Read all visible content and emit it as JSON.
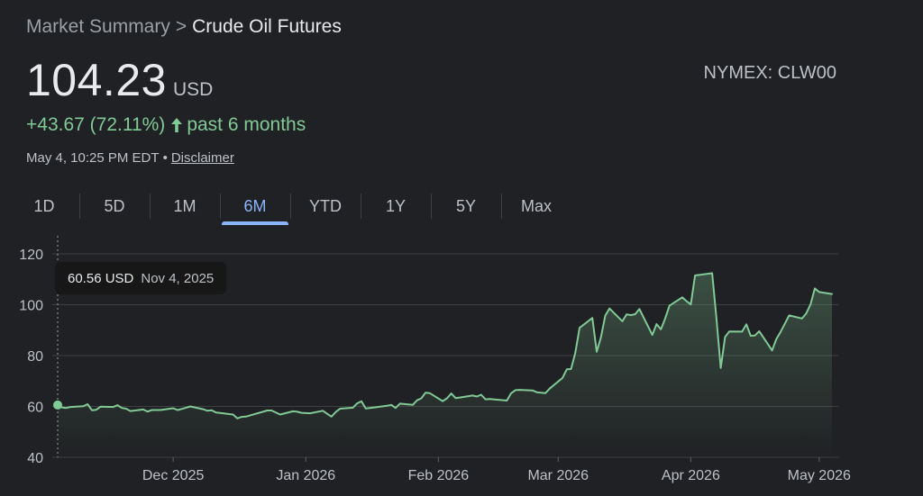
{
  "breadcrumb": {
    "parent": "Market Summary",
    "separator": ">",
    "current": "Crude Oil Futures"
  },
  "quote": {
    "price": "104.23",
    "currency": "USD",
    "exchange": "NYMEX: CLW00",
    "change": "+43.67 (72.11%)",
    "period": "past 6 months",
    "timestamp": "May 4, 10:25 PM EDT",
    "disclaimer": "Disclaimer"
  },
  "tabs": [
    {
      "label": "1D",
      "active": false
    },
    {
      "label": "5D",
      "active": false
    },
    {
      "label": "1M",
      "active": false
    },
    {
      "label": "6M",
      "active": true
    },
    {
      "label": "YTD",
      "active": false
    },
    {
      "label": "1Y",
      "active": false
    },
    {
      "label": "5Y",
      "active": false
    },
    {
      "label": "Max",
      "active": false
    }
  ],
  "tooltip": {
    "price": "60.56 USD",
    "date": "Nov 4, 2025"
  },
  "colors": {
    "line": "#81c995",
    "accent": "#8ab4f8",
    "background": "#202124",
    "grid": "#3c4043"
  },
  "chart_data": {
    "type": "area",
    "title": "",
    "xlabel": "",
    "ylabel": "",
    "ylim": [
      40,
      120
    ],
    "yticks": [
      40,
      60,
      80,
      100,
      120
    ],
    "xlim": [
      "2025-11-04",
      "2026-05-04"
    ],
    "xticks": [
      {
        "date": "2025-12-01",
        "label": "Dec 2025"
      },
      {
        "date": "2026-01-01",
        "label": "Jan 2026"
      },
      {
        "date": "2026-02-01",
        "label": "Feb 2026"
      },
      {
        "date": "2026-03-01",
        "label": "Mar 2026"
      },
      {
        "date": "2026-04-01",
        "label": "Apr 2026"
      },
      {
        "date": "2026-05-01",
        "label": "May 2026"
      }
    ],
    "grid": true,
    "highlight": {
      "date": "2025-11-04",
      "value": 60.56
    },
    "series": [
      {
        "points": [
          [
            "2025-11-04",
            60.56
          ],
          [
            "2025-11-05",
            59.6
          ],
          [
            "2025-11-06",
            59.4
          ],
          [
            "2025-11-07",
            59.8
          ],
          [
            "2025-11-10",
            60.1
          ],
          [
            "2025-11-11",
            60.9
          ],
          [
            "2025-11-12",
            58.5
          ],
          [
            "2025-11-13",
            58.7
          ],
          [
            "2025-11-14",
            59.9
          ],
          [
            "2025-11-17",
            59.8
          ],
          [
            "2025-11-18",
            60.5
          ],
          [
            "2025-11-19",
            59.4
          ],
          [
            "2025-11-20",
            59.1
          ],
          [
            "2025-11-21",
            58.2
          ],
          [
            "2025-11-24",
            58.8
          ],
          [
            "2025-11-25",
            58.0
          ],
          [
            "2025-11-26",
            58.6
          ],
          [
            "2025-11-28",
            58.6
          ],
          [
            "2025-12-01",
            59.3
          ],
          [
            "2025-12-02",
            58.6
          ],
          [
            "2025-12-03",
            59.0
          ],
          [
            "2025-12-04",
            59.5
          ],
          [
            "2025-12-05",
            60.0
          ],
          [
            "2025-12-08",
            58.9
          ],
          [
            "2025-12-09",
            58.3
          ],
          [
            "2025-12-10",
            58.5
          ],
          [
            "2025-12-11",
            57.6
          ],
          [
            "2025-12-12",
            57.4
          ],
          [
            "2025-12-15",
            56.8
          ],
          [
            "2025-12-16",
            55.3
          ],
          [
            "2025-12-17",
            55.9
          ],
          [
            "2025-12-18",
            56.0
          ],
          [
            "2025-12-19",
            56.5
          ],
          [
            "2025-12-22",
            57.9
          ],
          [
            "2025-12-23",
            58.4
          ],
          [
            "2025-12-24",
            58.4
          ],
          [
            "2025-12-26",
            56.8
          ],
          [
            "2025-12-29",
            58.1
          ],
          [
            "2025-12-30",
            57.9
          ],
          [
            "2025-12-31",
            57.5
          ],
          [
            "2026-01-02",
            57.3
          ],
          [
            "2026-01-05",
            58.3
          ],
          [
            "2026-01-06",
            57.1
          ],
          [
            "2026-01-07",
            56.0
          ],
          [
            "2026-01-08",
            57.8
          ],
          [
            "2026-01-09",
            59.1
          ],
          [
            "2026-01-12",
            59.5
          ],
          [
            "2026-01-13",
            61.2
          ],
          [
            "2026-01-14",
            62.0
          ],
          [
            "2026-01-15",
            59.2
          ],
          [
            "2026-01-16",
            59.4
          ],
          [
            "2026-01-20",
            60.3
          ],
          [
            "2026-01-21",
            60.6
          ],
          [
            "2026-01-22",
            59.4
          ],
          [
            "2026-01-23",
            61.1
          ],
          [
            "2026-01-26",
            60.6
          ],
          [
            "2026-01-27",
            62.4
          ],
          [
            "2026-01-28",
            63.2
          ],
          [
            "2026-01-29",
            65.4
          ],
          [
            "2026-01-30",
            65.2
          ],
          [
            "2026-02-02",
            62.1
          ],
          [
            "2026-02-03",
            63.2
          ],
          [
            "2026-02-04",
            65.1
          ],
          [
            "2026-02-05",
            63.3
          ],
          [
            "2026-02-06",
            63.5
          ],
          [
            "2026-02-09",
            64.3
          ],
          [
            "2026-02-10",
            63.9
          ],
          [
            "2026-02-11",
            64.6
          ],
          [
            "2026-02-12",
            62.8
          ],
          [
            "2026-02-13",
            62.9
          ],
          [
            "2026-02-17",
            62.3
          ],
          [
            "2026-02-18",
            65.2
          ],
          [
            "2026-02-19",
            66.4
          ],
          [
            "2026-02-20",
            66.5
          ],
          [
            "2026-02-23",
            66.3
          ],
          [
            "2026-02-24",
            65.6
          ],
          [
            "2026-02-25",
            65.4
          ],
          [
            "2026-02-26",
            65.2
          ],
          [
            "2026-02-27",
            67.0
          ],
          [
            "2026-03-02",
            71.2
          ],
          [
            "2026-03-03",
            74.6
          ],
          [
            "2026-03-04",
            74.7
          ],
          [
            "2026-03-05",
            81.0
          ],
          [
            "2026-03-06",
            90.9
          ],
          [
            "2026-03-09",
            94.8
          ],
          [
            "2026-03-10",
            81.5
          ],
          [
            "2026-03-11",
            87.2
          ],
          [
            "2026-03-12",
            95.7
          ],
          [
            "2026-03-13",
            98.5
          ],
          [
            "2026-03-16",
            93.5
          ],
          [
            "2026-03-17",
            96.2
          ],
          [
            "2026-03-18",
            95.9
          ],
          [
            "2026-03-19",
            96.3
          ],
          [
            "2026-03-20",
            98.3
          ],
          [
            "2026-03-23",
            88.1
          ],
          [
            "2026-03-24",
            92.4
          ],
          [
            "2026-03-25",
            90.3
          ],
          [
            "2026-03-26",
            94.5
          ],
          [
            "2026-03-27",
            99.6
          ],
          [
            "2026-03-30",
            102.9
          ],
          [
            "2026-03-31",
            101.4
          ],
          [
            "2026-04-01",
            100.1
          ],
          [
            "2026-04-02",
            111.5
          ],
          [
            "2026-04-06",
            112.4
          ],
          [
            "2026-04-07",
            94.4
          ],
          [
            "2026-04-08",
            75.1
          ],
          [
            "2026-04-09",
            87.3
          ],
          [
            "2026-04-10",
            89.5
          ],
          [
            "2026-04-13",
            89.4
          ],
          [
            "2026-04-14",
            92.3
          ],
          [
            "2026-04-15",
            87.8
          ],
          [
            "2026-04-16",
            87.9
          ],
          [
            "2026-04-17",
            89.6
          ],
          [
            "2026-04-20",
            82.0
          ],
          [
            "2026-04-21",
            86.5
          ],
          [
            "2026-04-22",
            89.3
          ],
          [
            "2026-04-23",
            92.6
          ],
          [
            "2026-04-24",
            95.8
          ],
          [
            "2026-04-27",
            94.6
          ],
          [
            "2026-04-28",
            96.6
          ],
          [
            "2026-04-29",
            100.2
          ],
          [
            "2026-04-30",
            106.4
          ],
          [
            "2026-05-01",
            105.0
          ],
          [
            "2026-05-04",
            104.23
          ]
        ]
      }
    ]
  }
}
